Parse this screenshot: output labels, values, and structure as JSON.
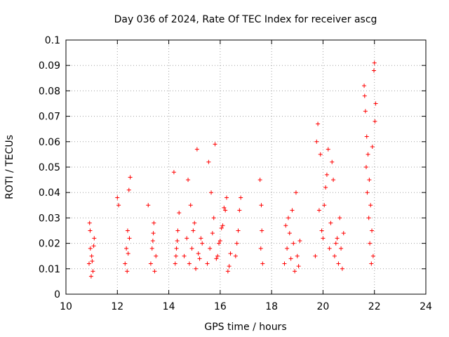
{
  "chart_data": {
    "type": "scatter",
    "title": "Day 036 of 2024, Rate Of TEC Index for receiver ascg",
    "xlabel": "GPS time / hours",
    "ylabel": "ROTI / TECUs",
    "xlim": [
      10,
      24
    ],
    "ylim": [
      0,
      0.1
    ],
    "xticks": [
      10,
      12,
      14,
      16,
      18,
      20,
      22,
      24
    ],
    "xtick_labels": [
      "10",
      "12",
      "14",
      "16",
      "18",
      "20",
      "22",
      "24"
    ],
    "yticks": [
      0,
      0.01,
      0.02,
      0.03,
      0.04,
      0.05,
      0.06,
      0.07,
      0.08,
      0.09,
      0.1
    ],
    "ytick_labels": [
      "0",
      "0.01",
      "0.02",
      "0.03",
      "0.04",
      "0.05",
      "0.06",
      "0.07",
      "0.08",
      "0.09",
      "0.1"
    ],
    "grid": true,
    "marker": "+",
    "marker_color": "#ff0000",
    "series": [
      {
        "name": "ROTI",
        "x": [
          10.9,
          10.95,
          11.0,
          11.05,
          11.1,
          10.92,
          10.98,
          11.02,
          11.08,
          10.94,
          12.0,
          12.05,
          12.3,
          12.35,
          12.4,
          12.45,
          12.5,
          12.38,
          12.42,
          12.47,
          13.2,
          13.3,
          13.35,
          13.4,
          13.45,
          13.5,
          13.38,
          13.42,
          14.2,
          14.25,
          14.3,
          14.35,
          14.4,
          14.28,
          14.33,
          14.6,
          14.7,
          14.8,
          14.9,
          15.0,
          15.1,
          15.2,
          15.3,
          14.75,
          14.85,
          14.95,
          15.05,
          15.15,
          15.25,
          15.5,
          15.6,
          15.7,
          15.8,
          15.9,
          16.0,
          16.1,
          16.2,
          16.3,
          16.4,
          15.55,
          15.65,
          15.75,
          15.85,
          15.95,
          16.05,
          16.15,
          16.25,
          16.35,
          16.6,
          16.7,
          16.8,
          16.65,
          16.75,
          17.55,
          17.6,
          17.65,
          17.58,
          17.62,
          18.5,
          18.6,
          18.7,
          18.8,
          18.9,
          19.0,
          19.1,
          18.55,
          18.65,
          18.75,
          18.85,
          18.95,
          19.05,
          19.7,
          19.8,
          19.9,
          20.0,
          20.1,
          20.2,
          20.3,
          20.4,
          20.5,
          20.6,
          20.7,
          20.8,
          19.75,
          19.85,
          19.95,
          20.05,
          20.15,
          20.25,
          20.35,
          20.45,
          20.55,
          20.65,
          20.75,
          21.6,
          21.65,
          21.7,
          21.75,
          21.8,
          21.85,
          21.9,
          21.95,
          22.0,
          22.05,
          21.62,
          21.68,
          21.72,
          21.78,
          21.82,
          21.88,
          21.92,
          21.98,
          22.02
        ],
        "y": [
          0.012,
          0.018,
          0.015,
          0.009,
          0.022,
          0.028,
          0.007,
          0.013,
          0.019,
          0.025,
          0.038,
          0.035,
          0.012,
          0.018,
          0.025,
          0.041,
          0.046,
          0.009,
          0.016,
          0.022,
          0.035,
          0.012,
          0.018,
          0.024,
          0.009,
          0.015,
          0.021,
          0.028,
          0.048,
          0.012,
          0.018,
          0.025,
          0.032,
          0.015,
          0.021,
          0.015,
          0.022,
          0.012,
          0.018,
          0.028,
          0.057,
          0.014,
          0.02,
          0.045,
          0.035,
          0.025,
          0.01,
          0.016,
          0.022,
          0.012,
          0.018,
          0.024,
          0.059,
          0.015,
          0.021,
          0.027,
          0.033,
          0.009,
          0.016,
          0.052,
          0.04,
          0.03,
          0.014,
          0.02,
          0.026,
          0.034,
          0.038,
          0.011,
          0.015,
          0.025,
          0.038,
          0.02,
          0.033,
          0.045,
          0.035,
          0.012,
          0.018,
          0.025,
          0.012,
          0.018,
          0.024,
          0.033,
          0.009,
          0.015,
          0.021,
          0.027,
          0.03,
          0.014,
          0.02,
          0.04,
          0.011,
          0.015,
          0.067,
          0.055,
          0.022,
          0.042,
          0.057,
          0.028,
          0.045,
          0.02,
          0.012,
          0.018,
          0.024,
          0.06,
          0.033,
          0.025,
          0.035,
          0.047,
          0.018,
          0.052,
          0.015,
          0.022,
          0.03,
          0.01,
          0.082,
          0.072,
          0.062,
          0.055,
          0.045,
          0.035,
          0.025,
          0.015,
          0.091,
          0.075,
          0.078,
          0.05,
          0.04,
          0.03,
          0.02,
          0.012,
          0.058,
          0.088,
          0.068
        ]
      }
    ]
  }
}
